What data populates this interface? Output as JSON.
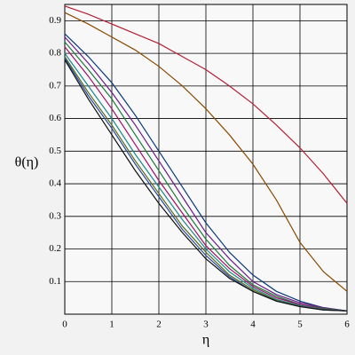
{
  "chart_data": {
    "type": "line",
    "xlabel": "η",
    "ylabel": "θ(η)",
    "x": [
      0,
      0.5,
      1,
      1.5,
      2,
      2.5,
      3,
      3.5,
      4,
      4.5,
      5,
      5.5,
      6
    ],
    "xlim": [
      0,
      6
    ],
    "ylim": [
      0,
      0.95
    ],
    "xticks": [
      0,
      1,
      2,
      3,
      4,
      5,
      6
    ],
    "yticks": [
      0.1,
      0.2,
      0.3,
      0.4,
      0.5,
      0.6,
      0.7,
      0.8,
      0.9
    ],
    "grid": true,
    "series": [
      {
        "color": "#b22034",
        "values": [
          0.945,
          0.92,
          0.89,
          0.86,
          0.83,
          0.79,
          0.75,
          0.7,
          0.645,
          0.58,
          0.51,
          0.43,
          0.34
        ]
      },
      {
        "color": "#8a4a00",
        "values": [
          0.925,
          0.89,
          0.85,
          0.81,
          0.76,
          0.7,
          0.63,
          0.55,
          0.46,
          0.35,
          0.22,
          0.13,
          0.07
        ]
      },
      {
        "color": "#0a3a7a",
        "values": [
          0.86,
          0.79,
          0.71,
          0.61,
          0.5,
          0.39,
          0.28,
          0.19,
          0.12,
          0.07,
          0.04,
          0.02,
          0.01
        ]
      },
      {
        "color": "#6a1a8a",
        "values": [
          0.85,
          0.77,
          0.68,
          0.58,
          0.47,
          0.36,
          0.25,
          0.17,
          0.1,
          0.06,
          0.035,
          0.02,
          0.01
        ]
      },
      {
        "color": "#1a7a3a",
        "values": [
          0.835,
          0.75,
          0.66,
          0.55,
          0.44,
          0.33,
          0.23,
          0.15,
          0.09,
          0.055,
          0.03,
          0.018,
          0.01
        ]
      },
      {
        "color": "#a0106a",
        "values": [
          0.82,
          0.73,
          0.63,
          0.52,
          0.41,
          0.31,
          0.21,
          0.14,
          0.085,
          0.05,
          0.03,
          0.016,
          0.01
        ]
      },
      {
        "color": "#1a8a8a",
        "values": [
          0.8,
          0.7,
          0.6,
          0.49,
          0.39,
          0.29,
          0.2,
          0.13,
          0.08,
          0.045,
          0.027,
          0.015,
          0.01
        ]
      },
      {
        "color": "#5a6a1a",
        "values": [
          0.79,
          0.68,
          0.58,
          0.47,
          0.37,
          0.27,
          0.19,
          0.12,
          0.075,
          0.042,
          0.025,
          0.014,
          0.01
        ]
      },
      {
        "color": "#2a4aa0",
        "values": [
          0.785,
          0.67,
          0.57,
          0.46,
          0.36,
          0.26,
          0.18,
          0.115,
          0.07,
          0.04,
          0.024,
          0.013,
          0.01
        ]
      },
      {
        "color": "#111111",
        "values": [
          0.78,
          0.66,
          0.55,
          0.44,
          0.34,
          0.25,
          0.17,
          0.11,
          0.07,
          0.04,
          0.023,
          0.013,
          0.01
        ]
      }
    ]
  }
}
